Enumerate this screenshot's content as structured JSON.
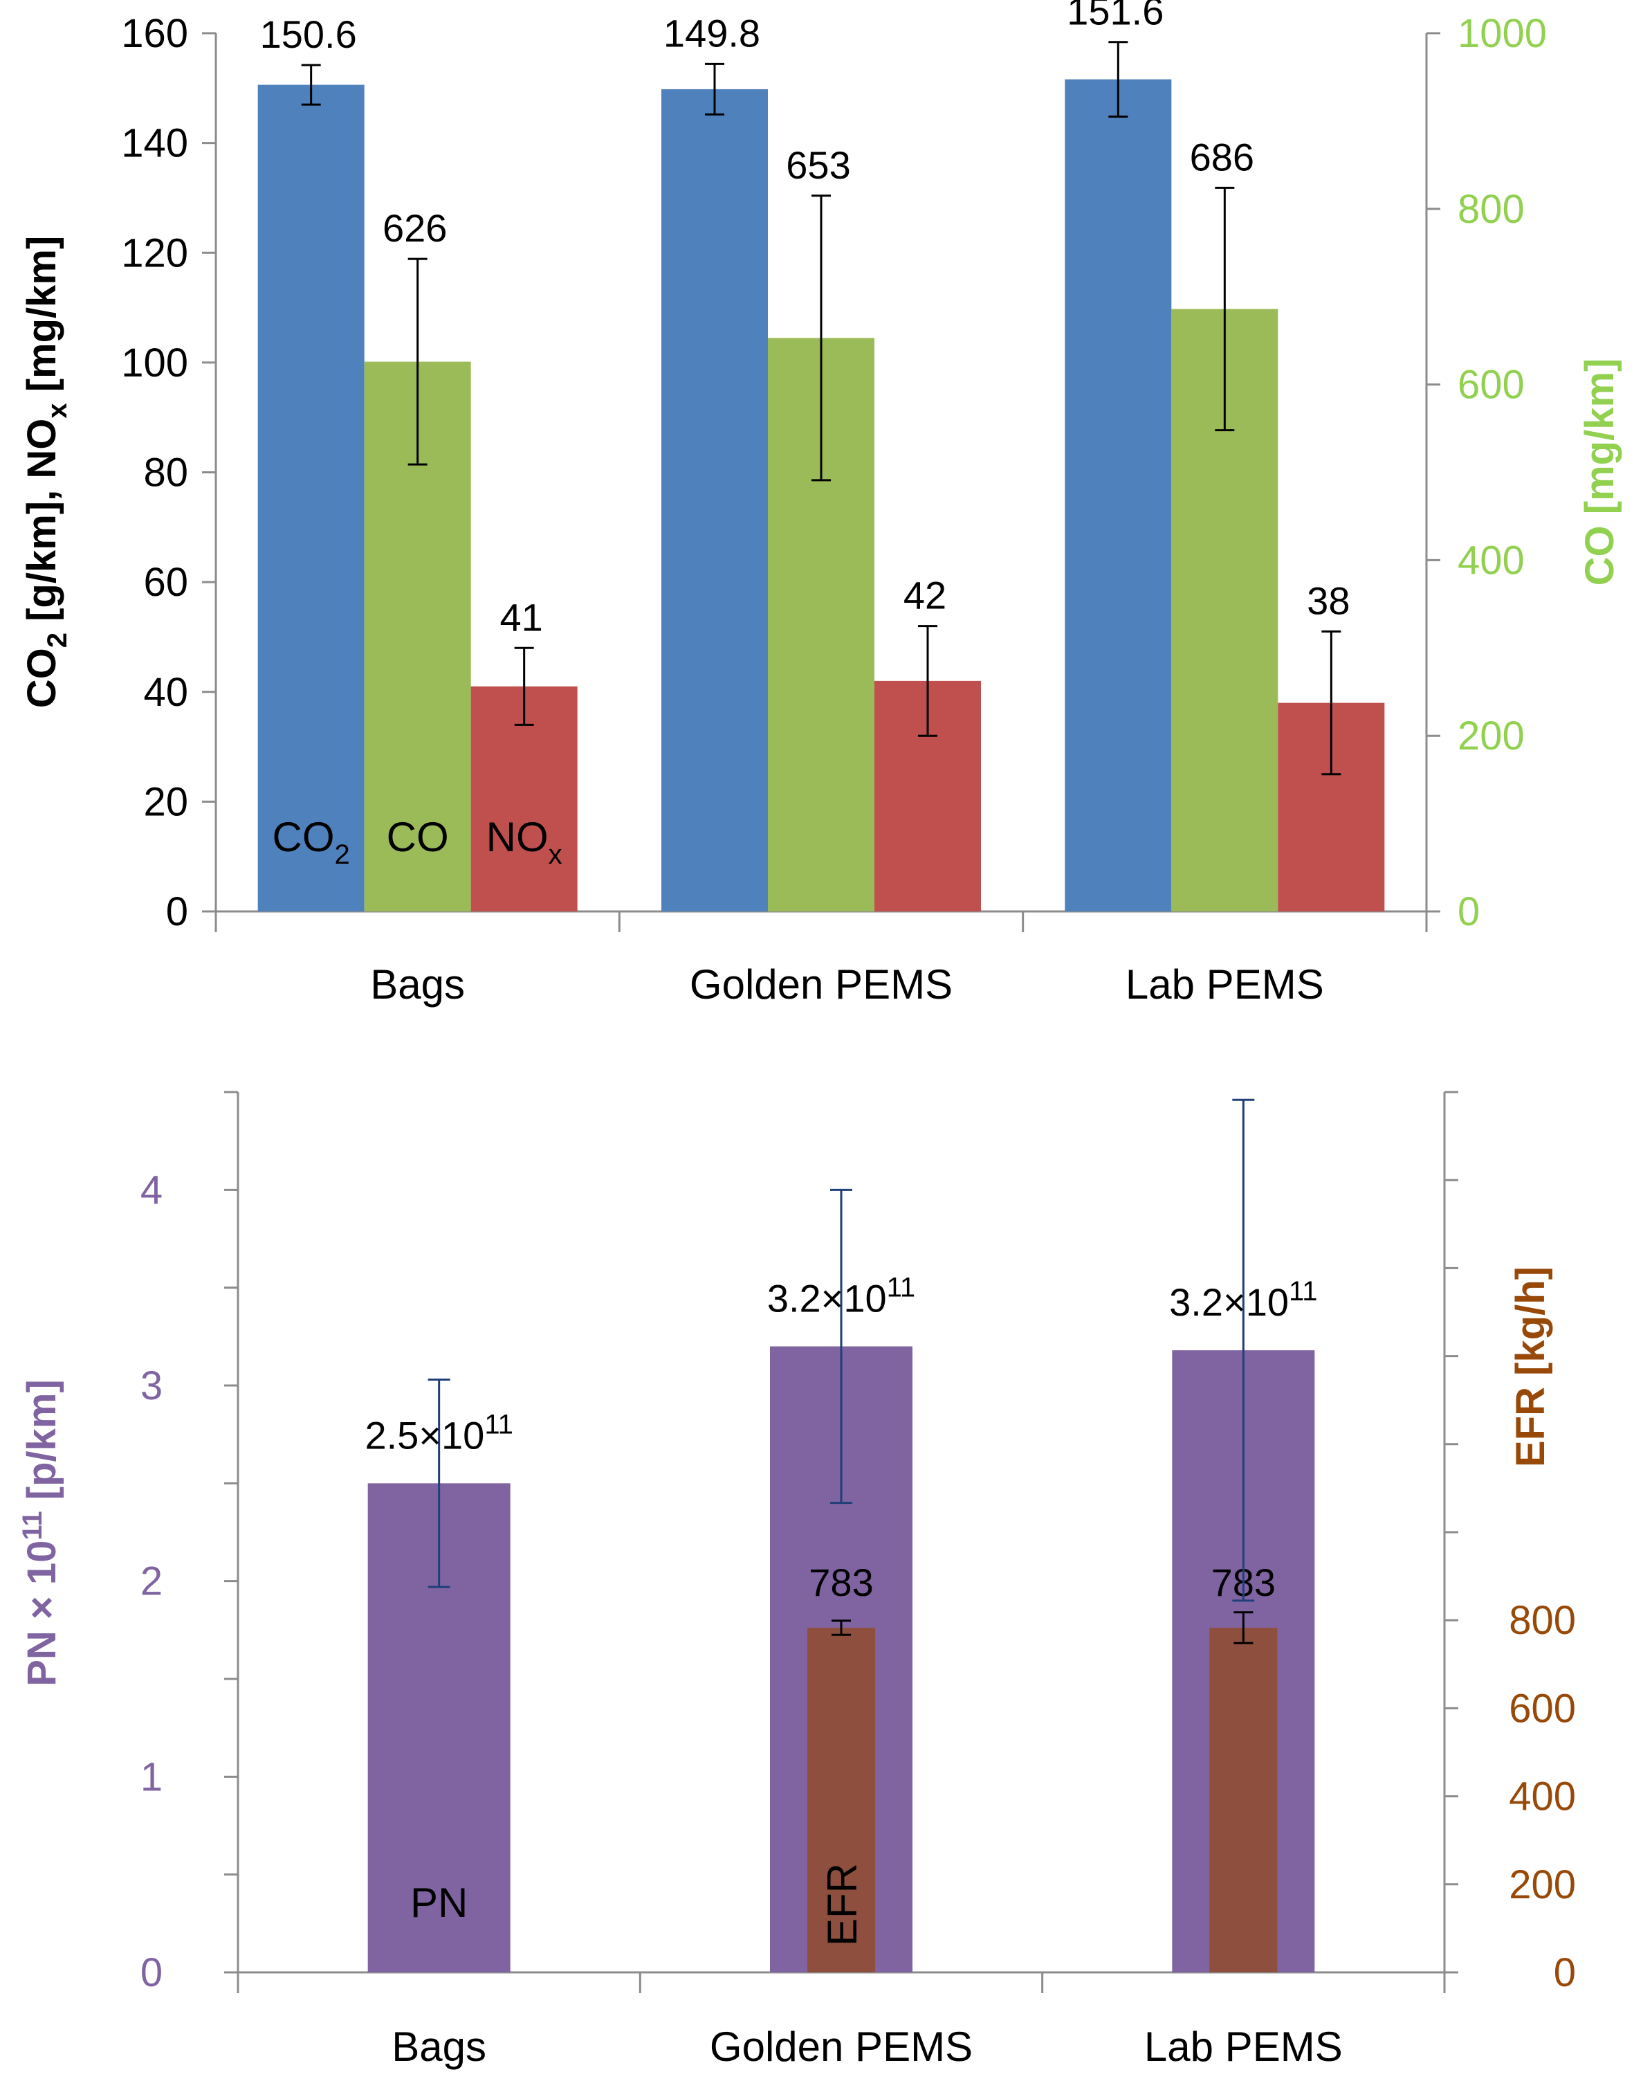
{
  "chart_data": [
    {
      "type": "bar",
      "categories": [
        "Bags",
        "Golden PEMS",
        "Lab PEMS"
      ],
      "left_axis": {
        "title_parts": [
          "CO",
          "2",
          " [g/km], NO",
          "x",
          " [mg/km]"
        ],
        "ylim": [
          0,
          160
        ],
        "ticks": [
          0,
          20,
          40,
          60,
          80,
          100,
          120,
          140,
          160
        ],
        "color": "#000000"
      },
      "right_axis": {
        "title": "CO [mg/km]",
        "ylim": [
          0,
          1000
        ],
        "ticks": [
          0,
          200,
          400,
          600,
          800,
          1000
        ],
        "color": "#92D050"
      },
      "series": [
        {
          "name": "CO2",
          "label_main": "CO",
          "label_sub": "2",
          "axis": "left",
          "color": "#4F81BD",
          "values": [
            150.6,
            149.8,
            151.6
          ],
          "value_labels": [
            "150.6",
            "149.8",
            "151.6"
          ],
          "errors": [
            3.6,
            4.6,
            6.8
          ]
        },
        {
          "name": "CO",
          "label_main": "CO",
          "label_sub": "",
          "axis": "right",
          "color": "#9BBB59",
          "values": [
            626,
            653,
            686
          ],
          "value_labels": [
            "626",
            "653",
            "686"
          ],
          "errors": [
            117,
            162,
            138
          ]
        },
        {
          "name": "NOx",
          "label_main": "NO",
          "label_sub": "x",
          "axis": "left",
          "color": "#C0504D",
          "values": [
            41,
            42,
            38
          ],
          "value_labels": [
            "41",
            "42",
            "38"
          ],
          "errors": [
            7,
            10,
            13
          ]
        }
      ]
    },
    {
      "type": "bar",
      "categories": [
        "Bags",
        "Golden PEMS",
        "Lab PEMS"
      ],
      "left_axis": {
        "title_parts": [
          "PN × 10",
          "11",
          " [p/km]"
        ],
        "ylim": [
          0,
          4.5
        ],
        "ticks": [
          0,
          1,
          2,
          3,
          4
        ],
        "minor_ticks": [
          0.5,
          1.5,
          2.5,
          3.5,
          4.5
        ],
        "color": "#8064A2"
      },
      "right_axis": {
        "title": "EFR [kg/h]",
        "ylim": [
          0,
          2000
        ],
        "ticks": [
          0,
          200,
          400,
          600,
          800
        ],
        "minor_ticks": [
          1000,
          1200,
          1400,
          1600,
          1800,
          2000
        ],
        "color": "#984807"
      },
      "series": [
        {
          "name": "PN",
          "label_main": "PN",
          "axis": "left",
          "color": "#8064A2",
          "values": [
            2.5,
            3.2,
            3.18
          ],
          "value_label_main": [
            "2.5×10",
            "3.2×10",
            "3.2×10"
          ],
          "value_label_sup": [
            "11",
            "11",
            "11"
          ],
          "errors": [
            0.53,
            0.8,
            1.28
          ]
        },
        {
          "name": "EFR",
          "label_main": "EFR",
          "axis": "right",
          "color": "#8E4F3E",
          "values": [
            null,
            783,
            783
          ],
          "value_labels": [
            "",
            "783",
            "783"
          ],
          "errors": [
            0,
            16,
            35
          ]
        }
      ]
    }
  ]
}
